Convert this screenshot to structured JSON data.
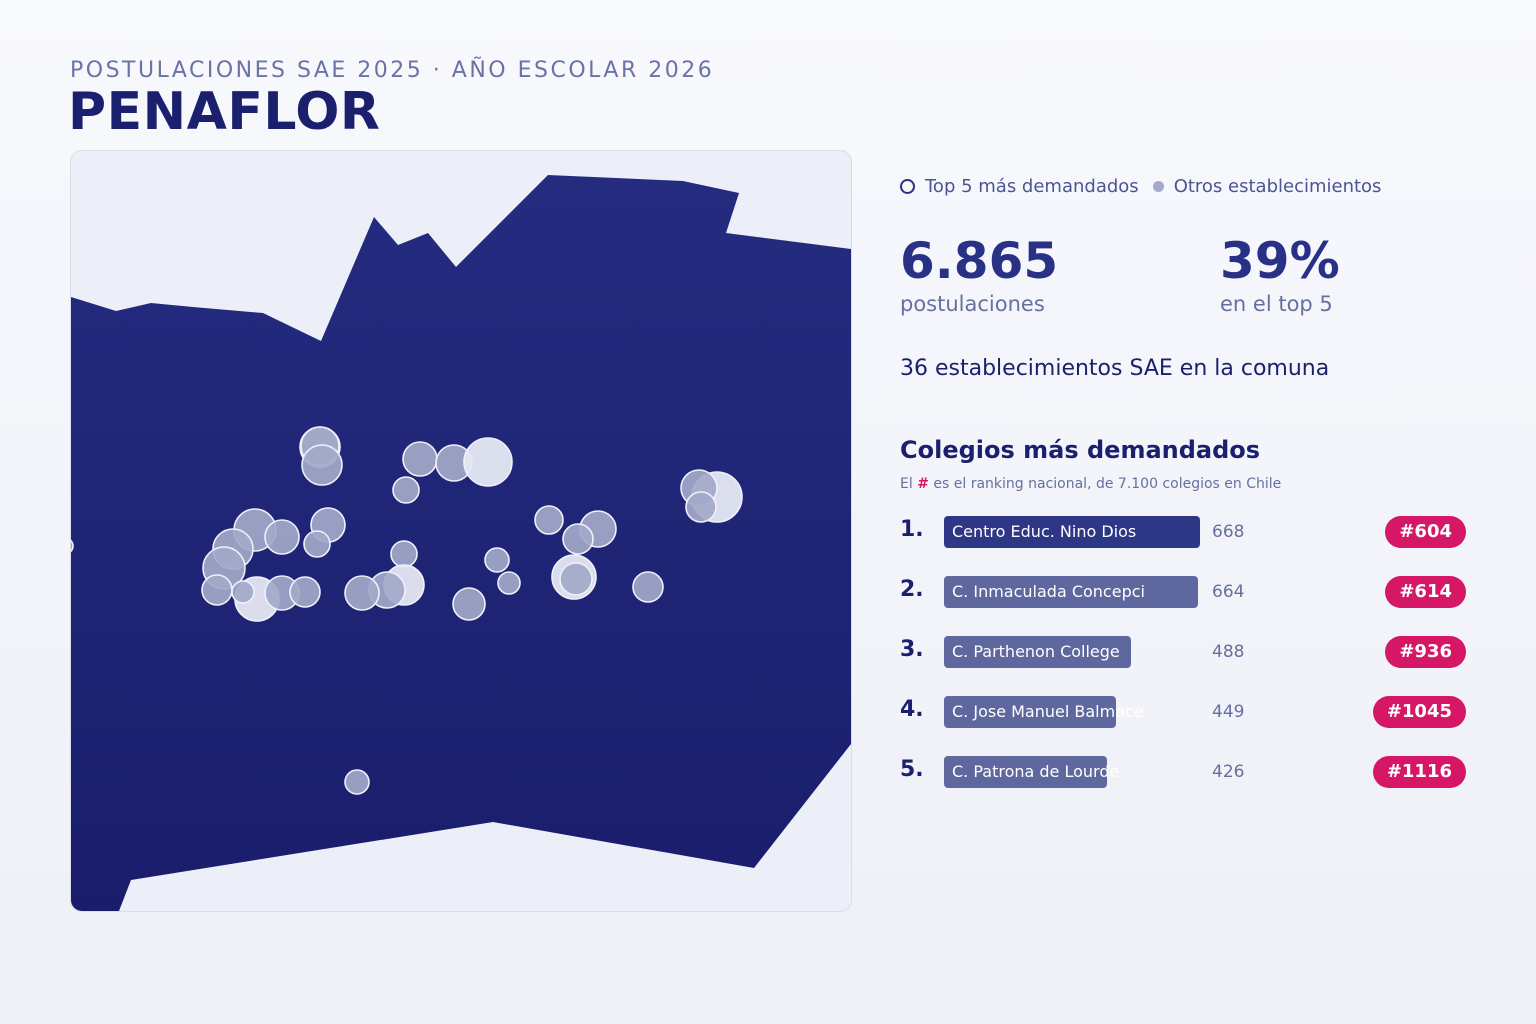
{
  "header": {
    "subtitle": "POSTULACIONES SAE 2025 · AÑO ESCOLAR 2026",
    "title": "PENAFLOR"
  },
  "legend": {
    "top5_label": "Top 5 más demandados",
    "others_label": "Otros establecimientos"
  },
  "stats": {
    "applications_value": "6.865",
    "applications_label": "postulaciones",
    "top5_share_value": "39%",
    "top5_share_label": "en el top 5",
    "establishments_text": "36 establecimientos SAE en la comuna"
  },
  "ranking": {
    "title": "Colegios más demandados",
    "note_prefix": "El",
    "note_hash": "#",
    "note_suffix": "es el ranking nacional, de 7.100 colegios en Chile",
    "max_value": 668,
    "items": [
      {
        "rank": "1.",
        "name": "Centro Educ. Nino Dios",
        "value": 668,
        "national": "#604"
      },
      {
        "rank": "2.",
        "name": "C. Inmaculada Concepci",
        "value": 664,
        "national": "#614"
      },
      {
        "rank": "3.",
        "name": "C. Parthenon College",
        "value": 488,
        "national": "#936"
      },
      {
        "rank": "4.",
        "name": "C. Jose Manuel Balmace",
        "value": 449,
        "national": "#1045"
      },
      {
        "rank": "5.",
        "name": "C. Patrona de Lourde",
        "value": 426,
        "national": "#1116"
      }
    ]
  },
  "colors": {
    "region_fill": "#1f2576",
    "map_background": "#eceef8",
    "top5_bar": "#2e3686",
    "other_bar": "#5e689e",
    "badge": "#d61766",
    "marker_fill": "#a3a9c9",
    "top5_marker_fill": "#e6e8f3"
  }
}
